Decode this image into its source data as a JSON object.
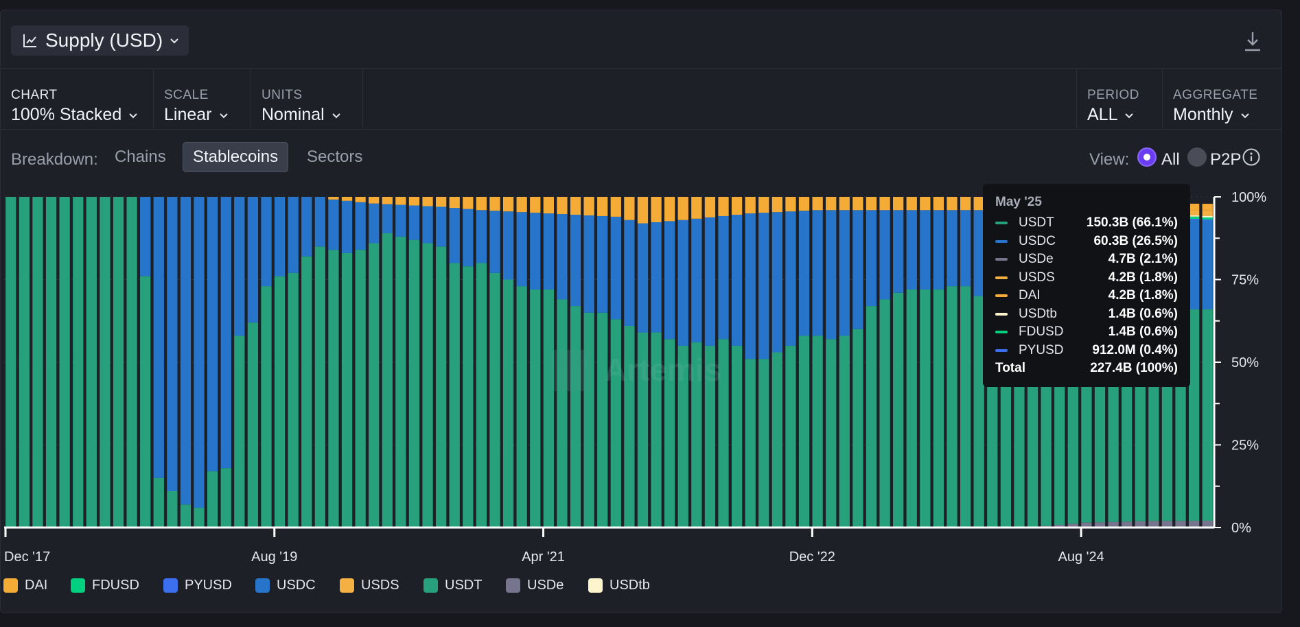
{
  "header": {
    "title": "Supply (USD)"
  },
  "controls": {
    "chart": {
      "label": "CHART",
      "value": "100% Stacked"
    },
    "scale": {
      "label": "SCALE",
      "value": "Linear"
    },
    "units": {
      "label": "UNITS",
      "value": "Nominal"
    },
    "period": {
      "label": "PERIOD",
      "value": "ALL"
    },
    "aggregate": {
      "label": "AGGREGATE",
      "value": "Monthly"
    }
  },
  "breakdown": {
    "label": "Breakdown:",
    "options": [
      "Chains",
      "Stablecoins",
      "Sectors"
    ],
    "selected": "Stablecoins"
  },
  "view": {
    "label": "View:",
    "all": "All",
    "p2p": "P2P"
  },
  "watermark": "Artemis",
  "colors": {
    "USDT": "#26a17b",
    "USDC": "#2775ca",
    "USDe": "#77758d",
    "USDS": "#f4b042",
    "DAI": "#f5ac37",
    "USDtb": "#fff5cc",
    "FDUSD": "#00d07f",
    "PYUSD": "#3c6ff0",
    "background": "#1e2028",
    "accent": "#6a3df2"
  },
  "tooltip": {
    "title": "May '25",
    "rows": [
      {
        "name": "USDT",
        "value": "150.3B (66.1%)",
        "color": "#26a17b"
      },
      {
        "name": "USDC",
        "value": "60.3B (26.5%)",
        "color": "#2775ca"
      },
      {
        "name": "USDe",
        "value": "4.7B (2.1%)",
        "color": "#77758d"
      },
      {
        "name": "USDS",
        "value": "4.2B (1.8%)",
        "color": "#f4b042"
      },
      {
        "name": "DAI",
        "value": "4.2B (1.8%)",
        "color": "#f5ac37"
      },
      {
        "name": "USDtb",
        "value": "1.4B (0.6%)",
        "color": "#fff5cc"
      },
      {
        "name": "FDUSD",
        "value": "1.4B (0.6%)",
        "color": "#00d07f"
      },
      {
        "name": "PYUSD",
        "value": "912.0M (0.4%)",
        "color": "#3c6ff0"
      }
    ],
    "total_label": "Total",
    "total_value": "227.4B (100%)"
  },
  "legend": [
    {
      "name": "DAI",
      "color": "#f5ac37"
    },
    {
      "name": "FDUSD",
      "color": "#00d07f"
    },
    {
      "name": "PYUSD",
      "color": "#3c6ff0"
    },
    {
      "name": "USDC",
      "color": "#2775ca"
    },
    {
      "name": "USDS",
      "color": "#f4b042"
    },
    {
      "name": "USDT",
      "color": "#26a17b"
    },
    {
      "name": "USDe",
      "color": "#77758d"
    },
    {
      "name": "USDtb",
      "color": "#fff5cc"
    }
  ],
  "chart_data": {
    "type": "bar",
    "stacked": "100%",
    "title": "Supply (USD)",
    "xlabel": "",
    "ylabel": "",
    "ylim": [
      0,
      100
    ],
    "y_ticks": [
      "0%",
      "25%",
      "50%",
      "75%",
      "100%"
    ],
    "x_ticks": [
      "Dec '17",
      "Aug '19",
      "Apr '21",
      "Dec '22",
      "Aug '24"
    ],
    "x_tick_indices": [
      0,
      20,
      40,
      60,
      80
    ],
    "first_period": "Dec '17",
    "last_period": "May '25",
    "keyframes": {
      "USDT": [
        [
          0,
          100
        ],
        [
          9,
          100
        ],
        [
          10,
          76
        ],
        [
          11,
          15
        ],
        [
          12,
          11
        ],
        [
          13,
          7
        ],
        [
          14,
          6
        ],
        [
          15,
          17
        ],
        [
          16,
          18
        ],
        [
          17,
          58
        ],
        [
          18,
          62
        ],
        [
          19,
          73
        ],
        [
          20,
          76
        ],
        [
          21,
          77
        ],
        [
          22,
          82
        ],
        [
          23,
          85
        ],
        [
          24,
          84
        ],
        [
          25,
          83
        ],
        [
          26,
          84
        ],
        [
          27,
          86
        ],
        [
          28,
          89
        ],
        [
          29,
          88
        ],
        [
          30,
          87
        ],
        [
          31,
          86
        ],
        [
          32,
          85
        ],
        [
          33,
          80
        ],
        [
          34,
          79
        ],
        [
          35,
          80
        ],
        [
          36,
          77
        ],
        [
          37,
          75
        ],
        [
          38,
          73
        ],
        [
          39,
          72
        ],
        [
          40,
          72
        ],
        [
          41,
          69
        ],
        [
          42,
          67
        ],
        [
          43,
          65
        ],
        [
          44,
          65
        ],
        [
          45,
          63
        ],
        [
          46,
          61
        ],
        [
          47,
          59
        ],
        [
          48,
          59
        ],
        [
          49,
          57
        ],
        [
          50,
          55
        ],
        [
          51,
          56
        ],
        [
          52,
          55
        ],
        [
          53,
          57
        ],
        [
          54,
          55
        ],
        [
          55,
          51
        ],
        [
          56,
          51
        ],
        [
          57,
          53
        ],
        [
          58,
          55
        ],
        [
          59,
          58
        ],
        [
          60,
          58
        ],
        [
          61,
          57
        ],
        [
          62,
          58
        ],
        [
          63,
          60
        ],
        [
          64,
          67
        ],
        [
          65,
          69
        ],
        [
          66,
          71
        ],
        [
          67,
          72
        ],
        [
          68,
          72
        ],
        [
          69,
          72
        ],
        [
          70,
          73
        ],
        [
          71,
          73
        ],
        [
          72,
          70
        ],
        [
          73,
          70
        ],
        [
          74,
          70
        ],
        [
          75,
          70
        ],
        [
          76,
          68
        ],
        [
          77,
          68
        ],
        [
          78,
          68
        ],
        [
          79,
          68
        ],
        [
          80,
          68
        ],
        [
          81,
          67
        ],
        [
          82,
          67
        ],
        [
          83,
          66
        ],
        [
          84,
          66
        ],
        [
          85,
          66
        ],
        [
          86,
          66
        ],
        [
          87,
          66
        ],
        [
          88,
          66
        ],
        [
          89,
          66
        ],
        [
          90,
          66
        ]
      ],
      "DAI": [
        [
          0,
          0
        ],
        [
          23,
          0
        ],
        [
          24,
          0.8
        ],
        [
          27,
          2
        ],
        [
          32,
          3
        ],
        [
          35,
          4
        ],
        [
          40,
          5
        ],
        [
          45,
          6
        ],
        [
          47,
          8
        ],
        [
          50,
          7
        ],
        [
          55,
          5
        ],
        [
          60,
          4
        ],
        [
          65,
          4
        ],
        [
          70,
          4
        ],
        [
          75,
          4
        ],
        [
          80,
          3
        ],
        [
          85,
          2
        ],
        [
          90,
          2
        ]
      ],
      "USDS": [
        [
          0,
          0
        ],
        [
          84,
          0
        ],
        [
          85,
          0.5
        ],
        [
          88,
          1.5
        ],
        [
          90,
          1.8
        ]
      ],
      "USDe": [
        [
          0,
          0
        ],
        [
          76,
          0
        ],
        [
          77,
          0.5
        ],
        [
          80,
          1.5
        ],
        [
          85,
          2
        ],
        [
          90,
          2.1
        ]
      ],
      "USDtb": [
        [
          0,
          0
        ],
        [
          86,
          0
        ],
        [
          87,
          0.3
        ],
        [
          90,
          0.6
        ]
      ],
      "FDUSD": [
        [
          0,
          0
        ],
        [
          72,
          0
        ],
        [
          73,
          0.3
        ],
        [
          75,
          0.6
        ],
        [
          80,
          1.2
        ],
        [
          85,
          0.8
        ],
        [
          90,
          0.6
        ]
      ],
      "PYUSD": [
        [
          0,
          0
        ],
        [
          75,
          0
        ],
        [
          76,
          0.1
        ],
        [
          85,
          0.3
        ],
        [
          90,
          0.4
        ]
      ]
    },
    "stack_order_bottom_to_top": [
      "USDe",
      "USDT",
      "USDC",
      "PYUSD",
      "FDUSD",
      "USDtb",
      "USDS",
      "DAI"
    ],
    "bar_count": 90
  }
}
